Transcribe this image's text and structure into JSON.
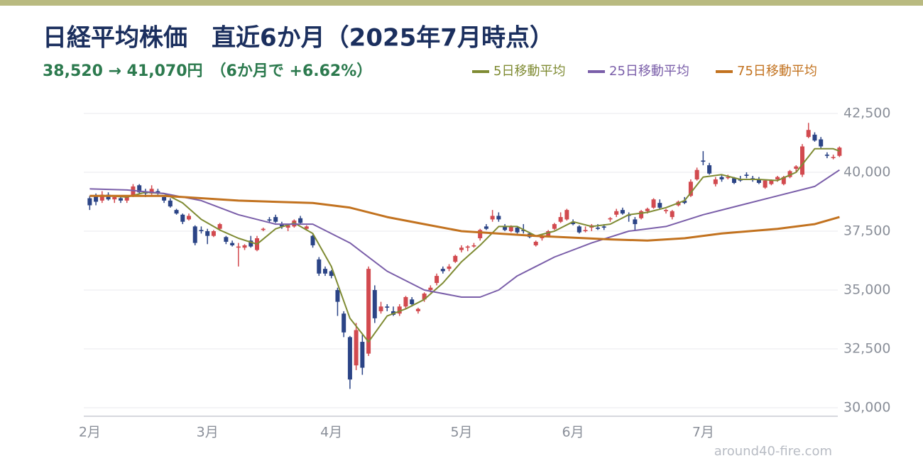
{
  "chart_data": {
    "type": "candlestick",
    "title": "日経平均株価　直近6か月（2025年7月時点）",
    "subtitle": "38,520 → 41,070円　（6か月で +6.62%）",
    "watermark": "around40-fire.com",
    "up_color": "#d24a4f",
    "down_color": "#2b4486",
    "categories": [
      "2月",
      null,
      null,
      null,
      null,
      null,
      null,
      null,
      null,
      null,
      null,
      null,
      null,
      null,
      null,
      null,
      null,
      null,
      null,
      "3月",
      null,
      null,
      null,
      null,
      null,
      null,
      null,
      null,
      null,
      null,
      null,
      null,
      null,
      null,
      null,
      null,
      null,
      null,
      null,
      "4月",
      null,
      null,
      null,
      null,
      null,
      null,
      null,
      null,
      null,
      null,
      null,
      null,
      null,
      null,
      null,
      null,
      null,
      null,
      null,
      null,
      "5月",
      null,
      null,
      null,
      null,
      null,
      null,
      null,
      null,
      null,
      null,
      null,
      null,
      null,
      null,
      null,
      null,
      null,
      "6月",
      null,
      null,
      null,
      null,
      null,
      null,
      null,
      null,
      null,
      null,
      null,
      null,
      null,
      null,
      null,
      null,
      null,
      null,
      null,
      null,
      "7月",
      null,
      null,
      null,
      null,
      null,
      null,
      null,
      null,
      null,
      null,
      null,
      null,
      null,
      null,
      null,
      null,
      null,
      null,
      null,
      null,
      null
    ],
    "candles": [
      [
        38900,
        39000,
        38400,
        38600
      ],
      [
        39000,
        39100,
        38600,
        38750
      ],
      [
        38800,
        39200,
        38700,
        39050
      ],
      [
        39050,
        39150,
        38800,
        38850
      ],
      [
        38850,
        39000,
        38700,
        38950
      ],
      [
        38900,
        38950,
        38700,
        38800
      ],
      [
        38800,
        39000,
        38700,
        38950
      ],
      [
        39000,
        39500,
        38950,
        39400
      ],
      [
        39450,
        39500,
        39100,
        39150
      ],
      [
        39150,
        39300,
        38950,
        39100
      ],
      [
        39100,
        39450,
        39050,
        39300
      ],
      [
        39200,
        39300,
        39050,
        39100
      ],
      [
        38950,
        39000,
        38700,
        38800
      ],
      [
        38800,
        38900,
        38500,
        38550
      ],
      [
        38400,
        38450,
        38200,
        38250
      ],
      [
        38200,
        38250,
        37800,
        37900
      ],
      [
        38000,
        38250,
        37950,
        38150
      ],
      [
        37700,
        37750,
        36900,
        37000
      ],
      [
        37550,
        37700,
        37400,
        37500
      ],
      [
        37500,
        37600,
        36950,
        37300
      ],
      [
        37300,
        37550,
        37250,
        37500
      ],
      [
        37600,
        37850,
        37550,
        37800
      ],
      [
        37250,
        37300,
        36950,
        37050
      ],
      [
        37000,
        37100,
        36850,
        36900
      ],
      [
        36800,
        37000,
        36000,
        36850
      ],
      [
        36800,
        36950,
        36700,
        36900
      ],
      [
        37100,
        37300,
        36800,
        36850
      ],
      [
        36700,
        37300,
        36650,
        37200
      ],
      [
        37550,
        37650,
        37500,
        37600
      ],
      [
        38000,
        38100,
        37850,
        37950
      ],
      [
        38100,
        38200,
        37850,
        37900
      ],
      [
        37800,
        37900,
        37600,
        37700
      ],
      [
        37650,
        37800,
        37500,
        37750
      ],
      [
        37700,
        38000,
        37650,
        37950
      ],
      [
        38050,
        38150,
        37800,
        37850
      ],
      [
        37600,
        37750,
        37550,
        37700
      ],
      [
        37300,
        37350,
        36800,
        36900
      ],
      [
        36300,
        36400,
        35600,
        35700
      ],
      [
        35900,
        36000,
        35600,
        35700
      ],
      [
        35800,
        35850,
        35500,
        35600
      ],
      [
        35000,
        35100,
        33900,
        34500
      ],
      [
        34000,
        34100,
        33000,
        33200
      ],
      [
        33000,
        33050,
        30800,
        31200
      ],
      [
        31800,
        33600,
        31600,
        33300
      ],
      [
        32800,
        33100,
        31400,
        31700
      ],
      [
        32300,
        36000,
        32200,
        35900
      ],
      [
        35000,
        35200,
        33600,
        33800
      ],
      [
        34100,
        34500,
        34000,
        34300
      ],
      [
        34300,
        34400,
        34100,
        34250
      ],
      [
        34100,
        34300,
        33900,
        33950
      ],
      [
        34000,
        34400,
        33900,
        34300
      ],
      [
        34300,
        34750,
        34200,
        34700
      ],
      [
        34600,
        34700,
        34300,
        34400
      ],
      [
        34100,
        34250,
        34000,
        34200
      ],
      [
        34600,
        34900,
        34500,
        34850
      ],
      [
        35000,
        35200,
        34900,
        35100
      ],
      [
        35300,
        35700,
        35200,
        35600
      ],
      [
        35900,
        36000,
        35700,
        35800
      ],
      [
        35900,
        36100,
        35800,
        36000
      ],
      [
        36200,
        36500,
        36150,
        36450
      ],
      [
        36700,
        36900,
        36600,
        36800
      ],
      [
        36800,
        36900,
        36650,
        36850
      ],
      [
        36850,
        37000,
        36800,
        36900
      ],
      [
        37200,
        37600,
        37100,
        37550
      ],
      [
        37700,
        37800,
        37550,
        37600
      ],
      [
        38000,
        38400,
        37900,
        38150
      ],
      [
        38150,
        38300,
        37900,
        38000
      ],
      [
        37700,
        37800,
        37500,
        37550
      ],
      [
        37500,
        37750,
        37450,
        37700
      ],
      [
        37650,
        37700,
        37400,
        37450
      ],
      [
        37550,
        37800,
        37400,
        37500
      ],
      [
        37400,
        37450,
        37200,
        37250
      ],
      [
        36900,
        37100,
        36850,
        37050
      ],
      [
        37200,
        37350,
        37100,
        37250
      ],
      [
        37300,
        37550,
        37250,
        37500
      ],
      [
        37600,
        37850,
        37550,
        37800
      ],
      [
        37900,
        38300,
        37850,
        38100
      ],
      [
        38000,
        38450,
        37950,
        38400
      ],
      [
        37900,
        38000,
        37750,
        37800
      ],
      [
        37700,
        37750,
        37400,
        37450
      ],
      [
        37500,
        37700,
        37450,
        37550
      ],
      [
        37650,
        37800,
        37500,
        37750
      ],
      [
        37650,
        37800,
        37550,
        37600
      ],
      [
        37700,
        37800,
        37550,
        37650
      ],
      [
        38000,
        38100,
        37900,
        38050
      ],
      [
        38200,
        38450,
        38100,
        38350
      ],
      [
        38400,
        38500,
        38200,
        38250
      ],
      [
        38200,
        38300,
        37900,
        38150
      ],
      [
        38000,
        38100,
        37550,
        37800
      ],
      [
        38050,
        38400,
        38000,
        38350
      ],
      [
        38350,
        38500,
        38250,
        38450
      ],
      [
        38500,
        38900,
        38450,
        38850
      ],
      [
        38700,
        38850,
        38450,
        38500
      ],
      [
        38350,
        38450,
        38250,
        38400
      ],
      [
        38100,
        38400,
        38000,
        38350
      ],
      [
        38600,
        38800,
        38550,
        38750
      ],
      [
        38800,
        38950,
        38650,
        38700
      ],
      [
        39000,
        39700,
        38950,
        39600
      ],
      [
        39700,
        40200,
        39650,
        40100
      ],
      [
        40500,
        40900,
        40300,
        40450
      ],
      [
        40300,
        40400,
        39900,
        39950
      ],
      [
        39500,
        39800,
        39400,
        39700
      ],
      [
        39800,
        39900,
        39600,
        39700
      ],
      [
        39800,
        39900,
        39700,
        39800
      ],
      [
        39750,
        39800,
        39500,
        39550
      ],
      [
        39700,
        39850,
        39600,
        39650
      ],
      [
        39900,
        40000,
        39750,
        39850
      ],
      [
        39750,
        39850,
        39600,
        39700
      ],
      [
        39700,
        39800,
        39500,
        39550
      ],
      [
        39350,
        39700,
        39300,
        39650
      ],
      [
        39500,
        39700,
        39450,
        39650
      ],
      [
        39700,
        39850,
        39600,
        39800
      ],
      [
        39500,
        39850,
        39450,
        39800
      ],
      [
        39800,
        40100,
        39750,
        40050
      ],
      [
        40150,
        40300,
        40000,
        40250
      ],
      [
        39900,
        41200,
        39800,
        41100
      ],
      [
        41500,
        42100,
        41450,
        41800
      ],
      [
        41600,
        41700,
        41300,
        41350
      ],
      [
        41400,
        41500,
        41000,
        41100
      ],
      [
        40750,
        40850,
        40600,
        40700
      ],
      [
        40650,
        40750,
        40550,
        40650
      ],
      [
        40700,
        41100,
        40650,
        41050
      ]
    ],
    "series": [
      {
        "name": "5日移動平均",
        "color": "#7f8b33",
        "x": [
          0,
          3,
          6,
          9,
          12,
          15,
          18,
          21,
          24,
          27,
          30,
          33,
          36,
          39,
          42,
          45,
          48,
          51,
          54,
          57,
          60,
          63,
          66,
          69,
          72,
          75,
          78,
          81,
          84,
          87,
          90,
          93,
          96,
          99,
          102,
          105,
          108,
          111,
          114,
          117,
          120,
          121
        ],
        "values": [
          39000,
          39000,
          38950,
          39150,
          39100,
          38700,
          38000,
          37550,
          37200,
          36950,
          37600,
          37850,
          37400,
          36000,
          33800,
          32800,
          33900,
          34200,
          34600,
          35300,
          36200,
          36900,
          37700,
          37700,
          37300,
          37500,
          37900,
          37700,
          37800,
          38200,
          38300,
          38500,
          38800,
          39800,
          39900,
          39700,
          39700,
          39650,
          40000,
          41000,
          41000,
          40900
        ]
      },
      {
        "name": "25日移動平均",
        "color": "#7a5ea9",
        "x": [
          0,
          6,
          12,
          18,
          24,
          30,
          36,
          42,
          48,
          54,
          60,
          63,
          66,
          69,
          72,
          75,
          81,
          87,
          93,
          99,
          105,
          111,
          117,
          121
        ],
        "values": [
          39300,
          39250,
          39100,
          38800,
          38200,
          37800,
          37800,
          37000,
          35800,
          35000,
          34700,
          34700,
          35000,
          35600,
          36000,
          36400,
          37000,
          37500,
          37700,
          38200,
          38600,
          39000,
          39400,
          40100
        ]
      },
      {
        "name": "75日移動平均",
        "color": "#c2721f",
        "x": [
          0,
          12,
          24,
          36,
          42,
          48,
          54,
          60,
          72,
          84,
          90,
          96,
          102,
          111,
          117,
          121
        ],
        "values": [
          39000,
          39000,
          38800,
          38700,
          38500,
          38100,
          37800,
          37500,
          37300,
          37150,
          37100,
          37200,
          37400,
          37600,
          37800,
          38100
        ]
      }
    ],
    "ylim": [
      29640,
      42500
    ],
    "yticks": [
      {
        "value": 30000,
        "label": "30,000"
      },
      {
        "value": 32500,
        "label": "32,500"
      },
      {
        "value": 35000,
        "label": "35,000"
      },
      {
        "value": 37500,
        "label": "37,500"
      },
      {
        "value": 40000,
        "label": "40,000"
      },
      {
        "value": 42500,
        "label": "42,500"
      }
    ],
    "grid": true
  }
}
